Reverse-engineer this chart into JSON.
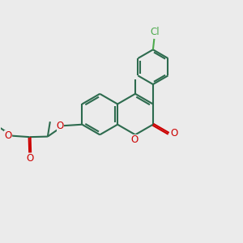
{
  "bg_color": "#ebebeb",
  "bond_color": "#2d6b4e",
  "oxygen_color": "#cc0000",
  "chlorine_color": "#4daa4d",
  "line_width": 1.5,
  "figsize": [
    3.0,
    3.0
  ],
  "dpi": 100,
  "xlim": [
    0,
    10
  ],
  "ylim": [
    0,
    10
  ]
}
